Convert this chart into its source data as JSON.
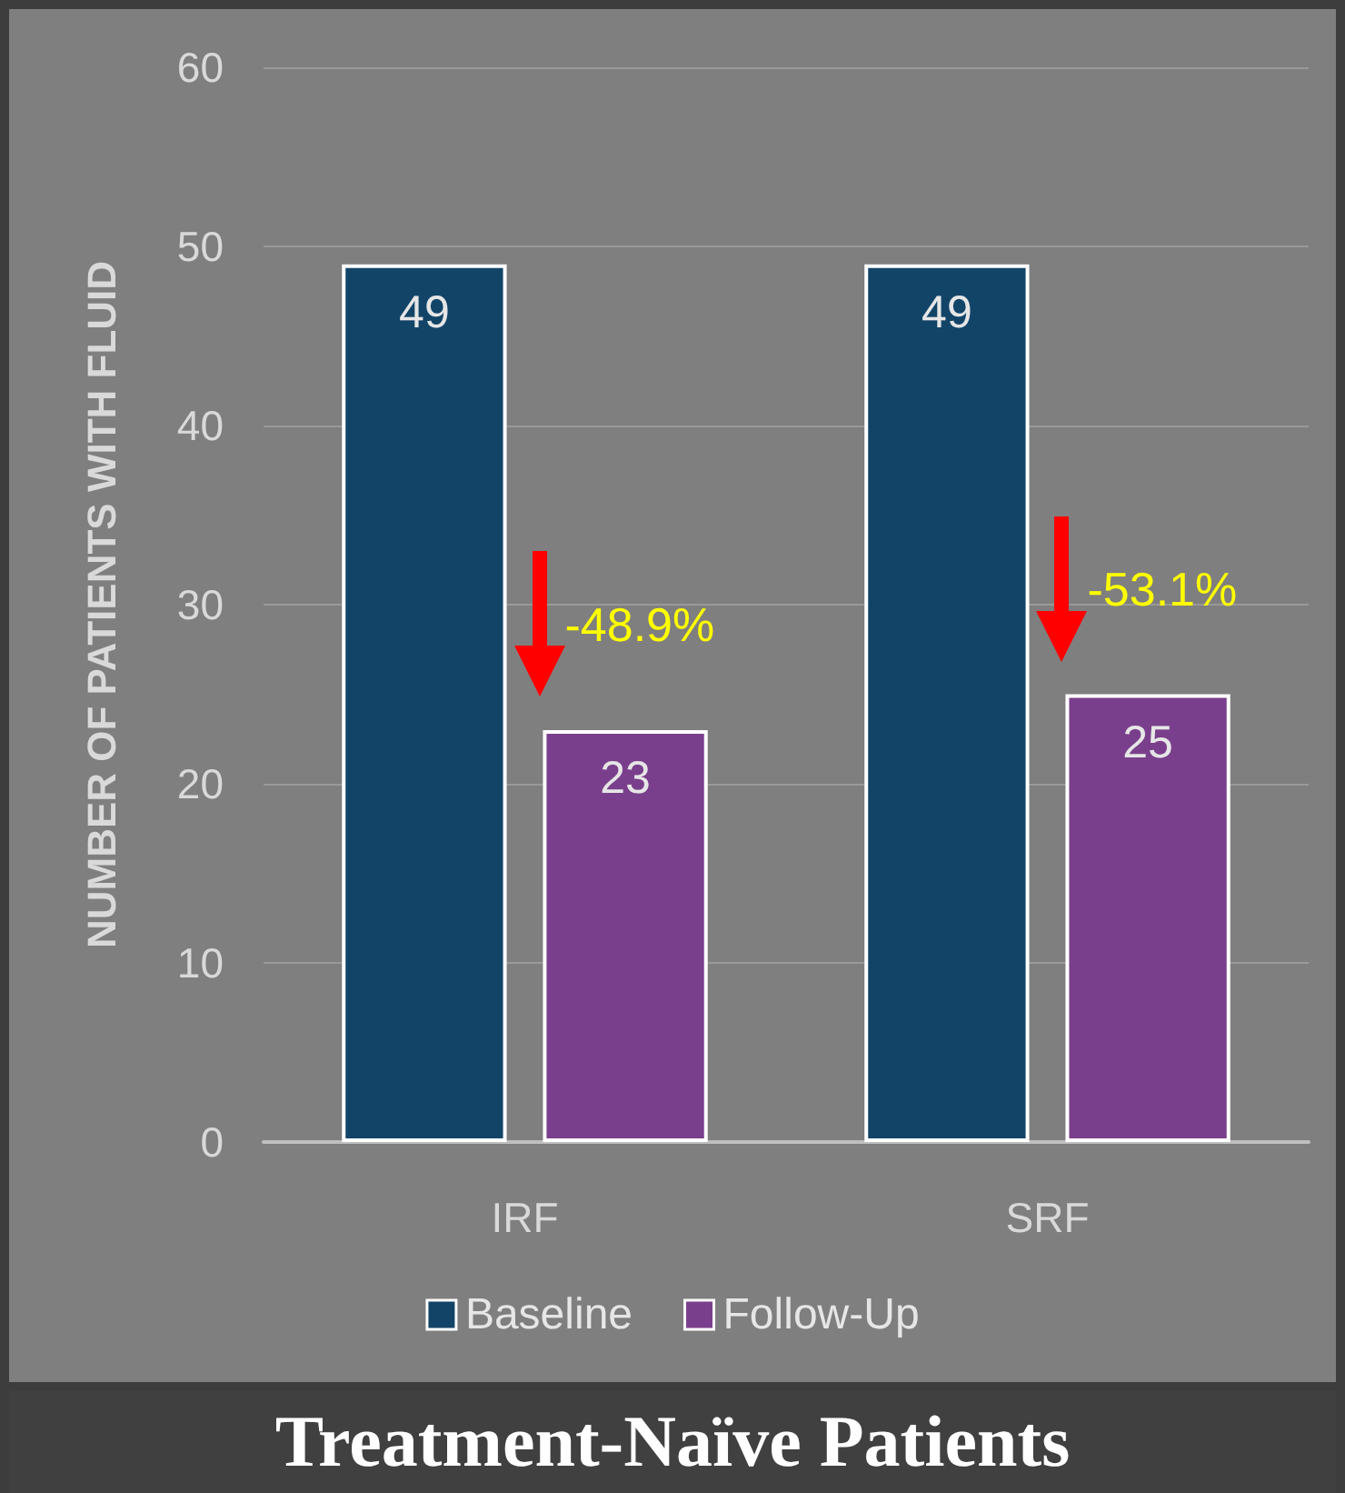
{
  "chart_data": {
    "type": "bar",
    "title": "Treatment-Naïve Patients",
    "ylabel": "NUMBER OF PATIENTS WITH FLUID",
    "categories": [
      "IRF",
      "SRF"
    ],
    "series": [
      {
        "name": "Baseline",
        "color": "#124468",
        "values": [
          49,
          49
        ]
      },
      {
        "name": "Follow-Up",
        "color": "#7a3f8c",
        "values": [
          23,
          25
        ]
      }
    ],
    "ylim": [
      0,
      60
    ],
    "yticks": [
      0,
      10,
      20,
      30,
      40,
      50,
      60
    ],
    "grid": "y",
    "legend": "bottom",
    "data_labels": true,
    "annotations": [
      "-48.9%",
      "-53.1%"
    ]
  }
}
